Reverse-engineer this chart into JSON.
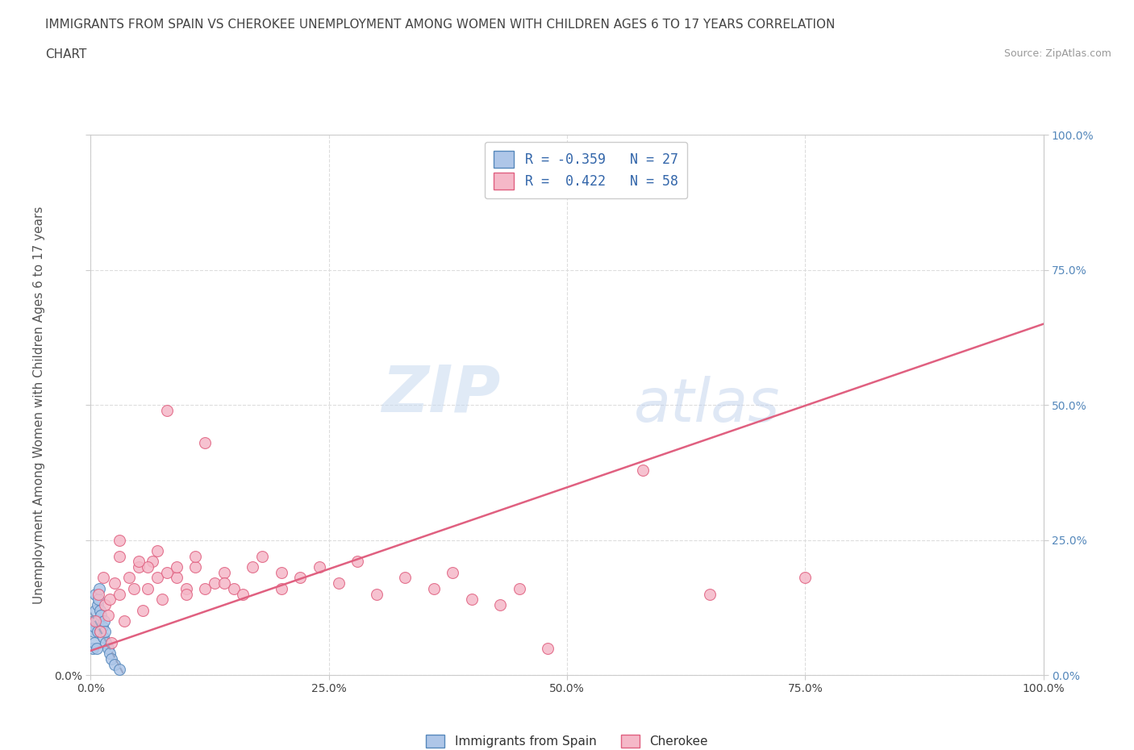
{
  "title_line1": "IMMIGRANTS FROM SPAIN VS CHEROKEE UNEMPLOYMENT AMONG WOMEN WITH CHILDREN AGES 6 TO 17 YEARS CORRELATION",
  "title_line2": "CHART",
  "source": "Source: ZipAtlas.com",
  "ylabel": "Unemployment Among Women with Children Ages 6 to 17 years",
  "xlim": [
    0.0,
    1.0
  ],
  "ylim": [
    0.0,
    1.0
  ],
  "xticks": [
    0.0,
    0.25,
    0.5,
    0.75,
    1.0
  ],
  "yticks": [
    0.0,
    0.25,
    0.5,
    0.75,
    1.0
  ],
  "xticklabels": [
    "0.0%",
    "25.0%",
    "50.0%",
    "75.0%",
    "100.0%"
  ],
  "yticklabels_left": [
    "0.0%",
    "",
    "",
    "",
    ""
  ],
  "yticklabels_right": [
    "0.0%",
    "25.0%",
    "50.0%",
    "75.0%",
    "100.0%"
  ],
  "blue_fill": "#aec6e8",
  "pink_fill": "#f5b8c8",
  "blue_edge": "#5588bb",
  "pink_edge": "#e06080",
  "pink_line_color": "#e06080",
  "blue_line_color": "#8899bb",
  "watermark_zip": "#c5daf0",
  "watermark_atlas": "#b0cce8",
  "legend_label_blue": "Immigrants from Spain",
  "legend_label_pink": "Cherokee",
  "legend_R_blue": "R = -0.359   N = 27",
  "legend_R_pink": "R =  0.422   N = 58",
  "blue_scatter_x": [
    0.002,
    0.003,
    0.003,
    0.004,
    0.004,
    0.005,
    0.005,
    0.006,
    0.006,
    0.007,
    0.007,
    0.008,
    0.008,
    0.009,
    0.01,
    0.01,
    0.011,
    0.012,
    0.013,
    0.014,
    0.015,
    0.016,
    0.018,
    0.02,
    0.022,
    0.025,
    0.03
  ],
  "blue_scatter_y": [
    0.05,
    0.08,
    0.1,
    0.06,
    0.09,
    0.12,
    0.15,
    0.05,
    0.1,
    0.08,
    0.13,
    0.1,
    0.14,
    0.16,
    0.12,
    0.08,
    0.11,
    0.09,
    0.07,
    0.1,
    0.08,
    0.06,
    0.05,
    0.04,
    0.03,
    0.02,
    0.01
  ],
  "pink_scatter_x": [
    0.005,
    0.008,
    0.01,
    0.013,
    0.015,
    0.018,
    0.02,
    0.022,
    0.025,
    0.03,
    0.035,
    0.04,
    0.045,
    0.05,
    0.055,
    0.06,
    0.065,
    0.07,
    0.075,
    0.08,
    0.09,
    0.1,
    0.11,
    0.12,
    0.13,
    0.14,
    0.15,
    0.16,
    0.17,
    0.18,
    0.2,
    0.22,
    0.24,
    0.26,
    0.28,
    0.3,
    0.33,
    0.36,
    0.38,
    0.4,
    0.43,
    0.45,
    0.48,
    0.03,
    0.06,
    0.08,
    0.1,
    0.12,
    0.14,
    0.2,
    0.58,
    0.65,
    0.75,
    0.03,
    0.05,
    0.07,
    0.09,
    0.11
  ],
  "pink_scatter_y": [
    0.1,
    0.15,
    0.08,
    0.18,
    0.13,
    0.11,
    0.14,
    0.06,
    0.17,
    0.15,
    0.1,
    0.18,
    0.16,
    0.2,
    0.12,
    0.16,
    0.21,
    0.18,
    0.14,
    0.49,
    0.18,
    0.16,
    0.2,
    0.43,
    0.17,
    0.19,
    0.16,
    0.15,
    0.2,
    0.22,
    0.16,
    0.18,
    0.2,
    0.17,
    0.21,
    0.15,
    0.18,
    0.16,
    0.19,
    0.14,
    0.13,
    0.16,
    0.05,
    0.22,
    0.2,
    0.19,
    0.15,
    0.16,
    0.17,
    0.19,
    0.38,
    0.15,
    0.18,
    0.25,
    0.21,
    0.23,
    0.2,
    0.22
  ],
  "pink_line_x0": 0.0,
  "pink_line_y0": 0.045,
  "pink_line_x1": 1.0,
  "pink_line_y1": 0.65,
  "blue_line_x0": 0.0,
  "blue_line_y0": 0.115,
  "blue_line_x1": 0.035,
  "blue_line_y1": 0.0,
  "grid_color": "#dddddd",
  "background_color": "#ffffff",
  "title_color": "#444444",
  "axis_label_color": "#555555",
  "right_tick_color": "#5588bb",
  "marker_size": 100
}
